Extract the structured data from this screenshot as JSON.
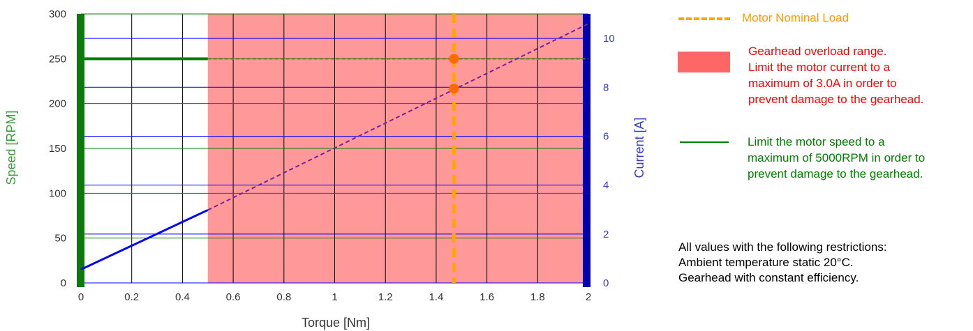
{
  "chart_data": {
    "type": "line",
    "xlabel": "Torque [Nm]",
    "ylabel_left": "Speed [RPM]",
    "ylabel_right": "Current [A]",
    "xlim": [
      0,
      2
    ],
    "ylim_left": [
      0,
      300
    ],
    "ylim_right": [
      0,
      11
    ],
    "x_ticks": [
      "0",
      "0.2",
      "0.4",
      "0.6",
      "0.8",
      "1",
      "1.2",
      "1.4",
      "1.6",
      "1.8",
      "2"
    ],
    "y_left_ticks": [
      "0",
      "50",
      "100",
      "150",
      "200",
      "250",
      "300"
    ],
    "y_right_ticks": [
      "0",
      "2",
      "4",
      "6",
      "8",
      "10"
    ],
    "grid": true,
    "overload_range": [
      0.5,
      2
    ],
    "nominal_load_torque": 1.47,
    "series": [
      {
        "axis": "left",
        "color": "#008000",
        "solid": {
          "x": [
            0,
            0.5
          ],
          "y": [
            250,
            250
          ]
        },
        "dashed": {
          "x": [
            0.5,
            2
          ],
          "y": [
            250,
            250
          ]
        }
      },
      {
        "axis": "right",
        "color": "#0000ff",
        "solid": {
          "x": [
            0,
            0.5
          ],
          "y": [
            0.55,
            2.98
          ]
        },
        "dashed": {
          "x": [
            0.5,
            2
          ],
          "y": [
            2.98,
            10.6
          ]
        }
      }
    ],
    "markers": [
      {
        "x": 1.47,
        "y": 250,
        "axis": "left"
      },
      {
        "x": 1.47,
        "y": 7.95,
        "axis": "right"
      }
    ],
    "colors": {
      "speed": "#008000",
      "current": "#0000ff",
      "overload_fill": "#ff9999",
      "nominal": "#ffa500",
      "marker": "#ff6a00",
      "dashed_current": "#7b1fa2"
    }
  },
  "legend": {
    "nominal": "Motor Nominal Load",
    "overload": [
      "Gearhead overload range.",
      "Limit the motor current to a",
      "maximum of 3.0A in order to",
      "prevent damage to the gearhead."
    ],
    "speed": [
      "Limit the motor speed to a",
      "maximum of 5000RPM in order to",
      "prevent damage to the gearhead."
    ]
  },
  "note": [
    "All values with the following restrictions:",
    "Ambient temperature static 20°C.",
    "Gearhead with constant efficiency."
  ]
}
